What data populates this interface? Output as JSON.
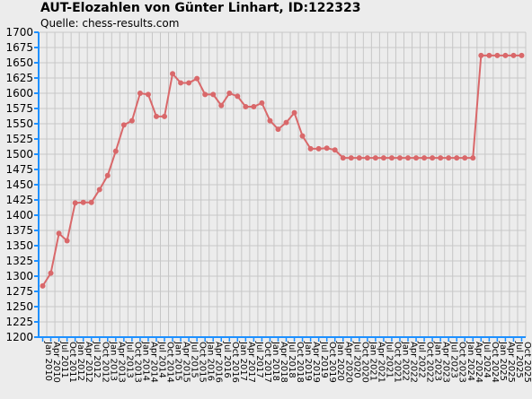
{
  "page": {
    "title": "AUT-Elozahlen von Günter Linhart, ID:122323",
    "source": "Quelle: chess-results.com"
  },
  "colors": {
    "background": "#ececec",
    "grid": "#c7c7c7",
    "axis": "#1e90ff",
    "line": "#d9686a"
  },
  "chart_data": {
    "type": "line",
    "title": "AUT-Elozahlen von Günter Linhart, ID:122323",
    "subtitle": "Quelle: chess-results.com",
    "xlabel": "",
    "ylabel": "",
    "ylim": [
      1200,
      1700
    ],
    "yticks": [
      1200,
      1225,
      1250,
      1275,
      1300,
      1325,
      1350,
      1375,
      1400,
      1425,
      1450,
      1475,
      1500,
      1525,
      1550,
      1575,
      1600,
      1625,
      1650,
      1675,
      1700
    ],
    "grid": true,
    "categories": [
      "Jan 2010",
      "Apr 2010",
      "Jul 2011",
      "Oct 2011",
      "Jan 2012",
      "Apr 2012",
      "Jul 2012",
      "Oct 2012",
      "Jan 2013",
      "Apr 2013",
      "Jul 2013",
      "Oct 2013",
      "Jan 2014",
      "Apr 2014",
      "Jul 2014",
      "Oct 2014",
      "Jan 2015",
      "Apr 2015",
      "Jul 2015",
      "Oct 2015",
      "Jan 2016",
      "Apr 2016",
      "Jul 2016",
      "Oct 2016",
      "Jan 2017",
      "Apr 2017",
      "Jul 2017",
      "Oct 2017",
      "Jan 2018",
      "Apr 2018",
      "Jul 2018",
      "Oct 2018",
      "Jan 2019",
      "Apr 2019",
      "Jul 2019",
      "Oct 2019",
      "Jan 2020",
      "Apr 2020",
      "Jul 2020",
      "Oct 2020",
      "Jan 2021",
      "Apr 2021",
      "Jul 2021",
      "Oct 2021",
      "Jan 2022",
      "Apr 2022",
      "Jul 2022",
      "Oct 2022",
      "Jan 2023",
      "Apr 2023",
      "Jul 2023",
      "Oct 2023",
      "Jan 2024",
      "Apr 2024",
      "Jul 2024",
      "Oct 2024",
      "Jan 2025",
      "Apr 2025",
      "Jul 2025",
      "Oct 2025"
    ],
    "series": [
      {
        "values": [
          1284,
          1305,
          1370,
          1358,
          1420,
          1421,
          1421,
          1442,
          1465,
          1505,
          1548,
          1555,
          1600,
          1598,
          1562,
          1562,
          1632,
          1617,
          1617,
          1624,
          1598,
          1598,
          1580,
          1600,
          1595,
          1578,
          1578,
          1584,
          1555,
          1541,
          1552,
          1568,
          1530,
          1509,
          1509,
          1510,
          1507,
          1494,
          1494,
          1494,
          1494,
          1494,
          1494,
          1494,
          1494,
          1494,
          1494,
          1494,
          1494,
          1494,
          1494,
          1494,
          1494,
          1494,
          1662,
          1662,
          1662,
          1662,
          1662,
          1662
        ]
      }
    ]
  }
}
